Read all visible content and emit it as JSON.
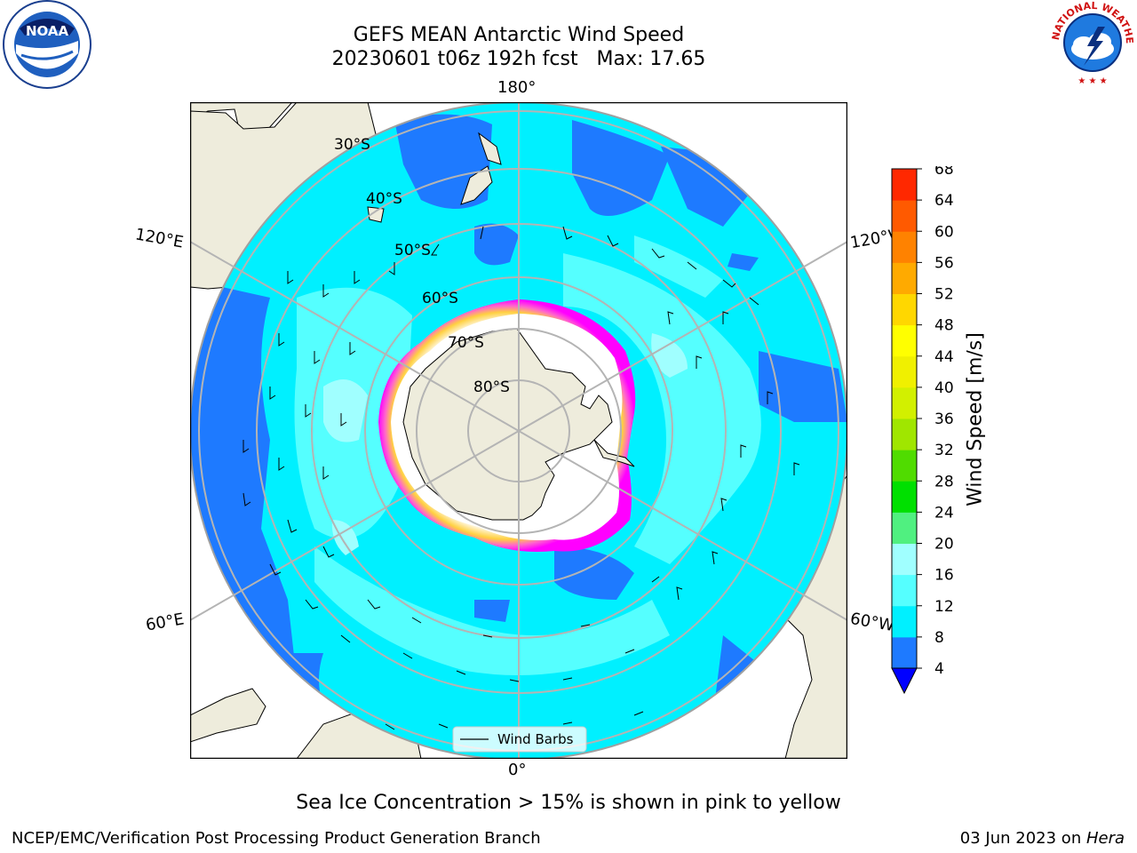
{
  "title": {
    "line1": "GEFS MEAN Antarctic Wind Speed",
    "line2": "20230601 t06z 192h fcst   Max: 17.65"
  },
  "logos": {
    "left": {
      "text": "NOAA",
      "icon": "noaa-logo"
    },
    "right": {
      "text": "NATIONAL WEATHER SERVICE",
      "icon": "nws-logo"
    }
  },
  "map": {
    "projection": "south-polar-stereographic",
    "lon_labels": {
      "top": "180°",
      "bottom": "0°",
      "left_upper": "120°E",
      "left_lower": "60°E",
      "right_upper": "120°W",
      "right_lower": "60°W"
    },
    "lat_labels": [
      "30°S",
      "40°S",
      "50°S",
      "60°S",
      "70°S",
      "80°S"
    ],
    "legend_label": "Wind Barbs",
    "colors": {
      "land": "#eeecdc",
      "ice": "#ffffff",
      "grid": "#b4b4b4",
      "ocean_4_8": "#1e7aff",
      "ocean_8_12": "#00f0ff",
      "ocean_12_16": "#55ffff",
      "ocean_16_20": "#a0ffff",
      "sea_ice_edge": [
        "#ff00ff",
        "#ff66cc",
        "#ffcc33"
      ]
    }
  },
  "colorbar": {
    "label": "Wind Speed [m/s]",
    "ticks": [
      "4",
      "8",
      "12",
      "16",
      "20",
      "24",
      "28",
      "32",
      "36",
      "40",
      "44",
      "48",
      "52",
      "56",
      "60",
      "64",
      "68"
    ],
    "colors": [
      "#1e7aff",
      "#00f0ff",
      "#55ffff",
      "#a0ffff",
      "#50f080",
      "#00e000",
      "#50dc00",
      "#a0e600",
      "#d2f000",
      "#f0f000",
      "#ffff00",
      "#ffd700",
      "#ffaa00",
      "#ff8200",
      "#ff5a00",
      "#ff2800",
      "#ff0000"
    ],
    "extend_color": "#0000ff"
  },
  "caption": "Sea Ice Concentration > 15% is shown in pink to yellow",
  "footer": {
    "left": "NCEP/EMC/Verification Post Processing Product Generation Branch",
    "right_date": "03 Jun 2023 on ",
    "right_host": "Hera"
  }
}
